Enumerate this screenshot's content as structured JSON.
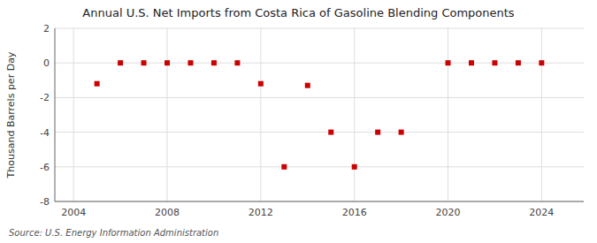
{
  "chart_data": {
    "type": "scatter",
    "title": "Annual U.S. Net Imports from Costa Rica of Gasoline Blending Components",
    "ylabel": "Thousand Barrels per Day",
    "source": "Source: U.S. Energy Information Administration",
    "x": [
      2005,
      2006,
      2007,
      2008,
      2009,
      2010,
      2011,
      2012,
      2013,
      2014,
      2015,
      2016,
      2017,
      2018,
      2020,
      2021,
      2022,
      2023,
      2024
    ],
    "values": [
      -1.2,
      0.0,
      0.0,
      0.0,
      0.0,
      0.0,
      0.0,
      -1.2,
      -6.0,
      -1.3,
      -4.0,
      -6.0,
      -4.0,
      -4.0,
      0.0,
      0.0,
      0.0,
      0.0,
      0.0
    ],
    "color": "#cc0000",
    "marker": "square",
    "xlim": [
      2003.2,
      2025.8
    ],
    "ylim": [
      -8,
      2
    ],
    "xticks": [
      2004,
      2008,
      2012,
      2016,
      2020,
      2024
    ],
    "yticks": [
      -8,
      -6,
      -4,
      -2,
      0,
      2
    ],
    "grid": true
  }
}
